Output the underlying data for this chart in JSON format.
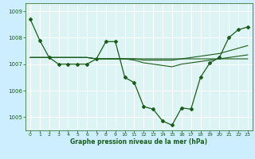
{
  "xlabel": "Graphe pression niveau de la mer (hPa)",
  "bg_color": "#cceeff",
  "plot_bg_color": "#ddf4f4",
  "grid_color": "#ffffff",
  "line_color": "#1a5c1a",
  "ylim": [
    1004.5,
    1009.3
  ],
  "xlim": [
    -0.5,
    23.5
  ],
  "yticks": [
    1005,
    1006,
    1007,
    1008,
    1009
  ],
  "xticks": [
    0,
    1,
    2,
    3,
    4,
    5,
    6,
    7,
    8,
    9,
    10,
    11,
    12,
    13,
    14,
    15,
    16,
    17,
    18,
    19,
    20,
    21,
    22,
    23
  ],
  "series1": [
    1008.7,
    1007.9,
    1007.25,
    1007.0,
    1007.0,
    1007.0,
    1007.0,
    1007.2,
    1007.85,
    1007.85,
    1006.5,
    1006.3,
    1005.4,
    1005.3,
    1004.85,
    1004.7,
    1005.35,
    1005.3,
    1006.5,
    1007.05,
    1007.25,
    1008.0,
    1008.3,
    1008.4
  ],
  "series2": [
    1007.25,
    1007.25,
    1007.25,
    1007.25,
    1007.25,
    1007.25,
    1007.25,
    1007.2,
    1007.2,
    1007.2,
    1007.2,
    1007.2,
    1007.2,
    1007.2,
    1007.2,
    1007.2,
    1007.2,
    1007.2,
    1007.2,
    1007.2,
    1007.2,
    1007.2,
    1007.2,
    1007.2
  ],
  "series3": [
    1007.25,
    1007.25,
    1007.25,
    1007.25,
    1007.25,
    1007.25,
    1007.25,
    1007.2,
    1007.2,
    1007.2,
    1007.2,
    1007.2,
    1007.15,
    1007.15,
    1007.15,
    1007.15,
    1007.2,
    1007.25,
    1007.3,
    1007.35,
    1007.4,
    1007.5,
    1007.6,
    1007.7
  ],
  "series4": [
    1007.25,
    1007.25,
    1007.25,
    1007.25,
    1007.25,
    1007.25,
    1007.25,
    1007.2,
    1007.2,
    1007.2,
    1007.2,
    1007.15,
    1007.05,
    1007.0,
    1006.95,
    1006.9,
    1007.0,
    1007.05,
    1007.1,
    1007.15,
    1007.2,
    1007.25,
    1007.3,
    1007.35
  ]
}
